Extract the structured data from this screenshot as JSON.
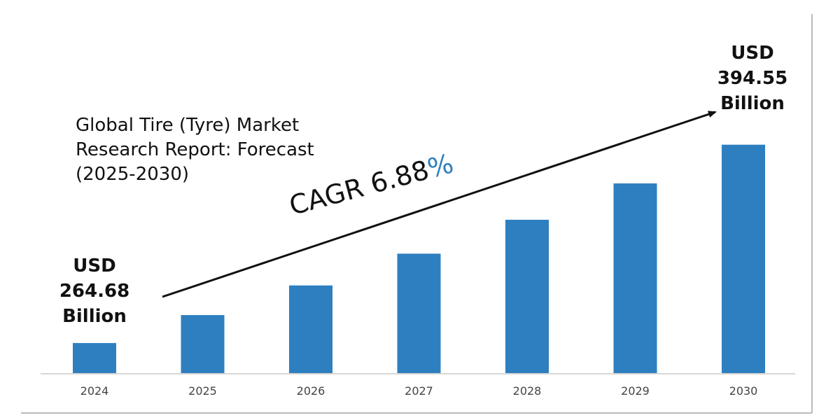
{
  "chart_data": {
    "type": "bar",
    "title": "Global Tire (Tyre) Market Research Report: Forecast (2025-2030)",
    "title_lines": [
      "Global Tire (Tyre) Market",
      "Research Report: Forecast",
      "(2025-2030)"
    ],
    "categories": [
      "2024",
      "2025",
      "2026",
      "2027",
      "2028",
      "2029",
      "2030"
    ],
    "values": [
      264.68,
      283.0,
      302.4,
      323.2,
      345.4,
      369.2,
      394.55
    ],
    "ylim": [
      245,
      410
    ],
    "grid": false,
    "bar_color": "#2e7fc0",
    "start_callout": {
      "line1": "USD",
      "line2": "264.68",
      "line3": "Billion"
    },
    "end_callout": {
      "line1": "USD",
      "line2": "394.55",
      "line3": "Billion"
    },
    "annotation": {
      "cagr_label": "CAGR 6.88",
      "cagr_symbol": "%"
    }
  }
}
